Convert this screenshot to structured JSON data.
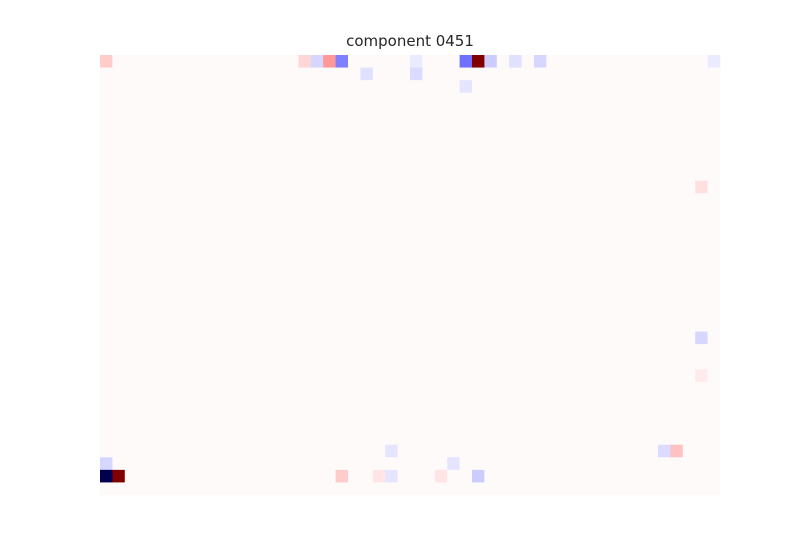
{
  "chart_data": {
    "type": "heatmap",
    "title": "component 0451",
    "xlabel": "",
    "ylabel": "",
    "axes_visible": false,
    "grid": false,
    "legend": "none",
    "n_cols": 50,
    "n_rows": 35,
    "colormap": "seismic",
    "value_range": [
      -1,
      1
    ],
    "background_value": 0.01,
    "cells": [
      {
        "row": 0,
        "col": 0,
        "value": 0.1
      },
      {
        "row": 0,
        "col": 16,
        "value": 0.08
      },
      {
        "row": 0,
        "col": 17,
        "value": -0.08
      },
      {
        "row": 0,
        "col": 18,
        "value": 0.2
      },
      {
        "row": 0,
        "col": 19,
        "value": -0.25
      },
      {
        "row": 0,
        "col": 25,
        "value": -0.04
      },
      {
        "row": 0,
        "col": 29,
        "value": -0.28
      },
      {
        "row": 0,
        "col": 30,
        "value": 1.0
      },
      {
        "row": 0,
        "col": 31,
        "value": -0.1
      },
      {
        "row": 0,
        "col": 33,
        "value": -0.06
      },
      {
        "row": 0,
        "col": 35,
        "value": -0.08
      },
      {
        "row": 0,
        "col": 49,
        "value": -0.04
      },
      {
        "row": 1,
        "col": 21,
        "value": -0.06
      },
      {
        "row": 1,
        "col": 25,
        "value": -0.07
      },
      {
        "row": 2,
        "col": 29,
        "value": -0.05
      },
      {
        "row": 10,
        "col": 48,
        "value": 0.06
      },
      {
        "row": 22,
        "col": 48,
        "value": -0.08
      },
      {
        "row": 25,
        "col": 48,
        "value": 0.04
      },
      {
        "row": 31,
        "col": 23,
        "value": -0.05
      },
      {
        "row": 31,
        "col": 45,
        "value": -0.07
      },
      {
        "row": 31,
        "col": 46,
        "value": 0.12
      },
      {
        "row": 32,
        "col": 0,
        "value": -0.08
      },
      {
        "row": 32,
        "col": 28,
        "value": -0.05
      },
      {
        "row": 33,
        "col": 0,
        "value": -1.0
      },
      {
        "row": 33,
        "col": 1,
        "value": 1.0
      },
      {
        "row": 33,
        "col": 19,
        "value": 0.1
      },
      {
        "row": 33,
        "col": 22,
        "value": 0.05
      },
      {
        "row": 33,
        "col": 23,
        "value": -0.05
      },
      {
        "row": 33,
        "col": 27,
        "value": 0.05
      },
      {
        "row": 33,
        "col": 30,
        "value": -0.1
      }
    ]
  }
}
